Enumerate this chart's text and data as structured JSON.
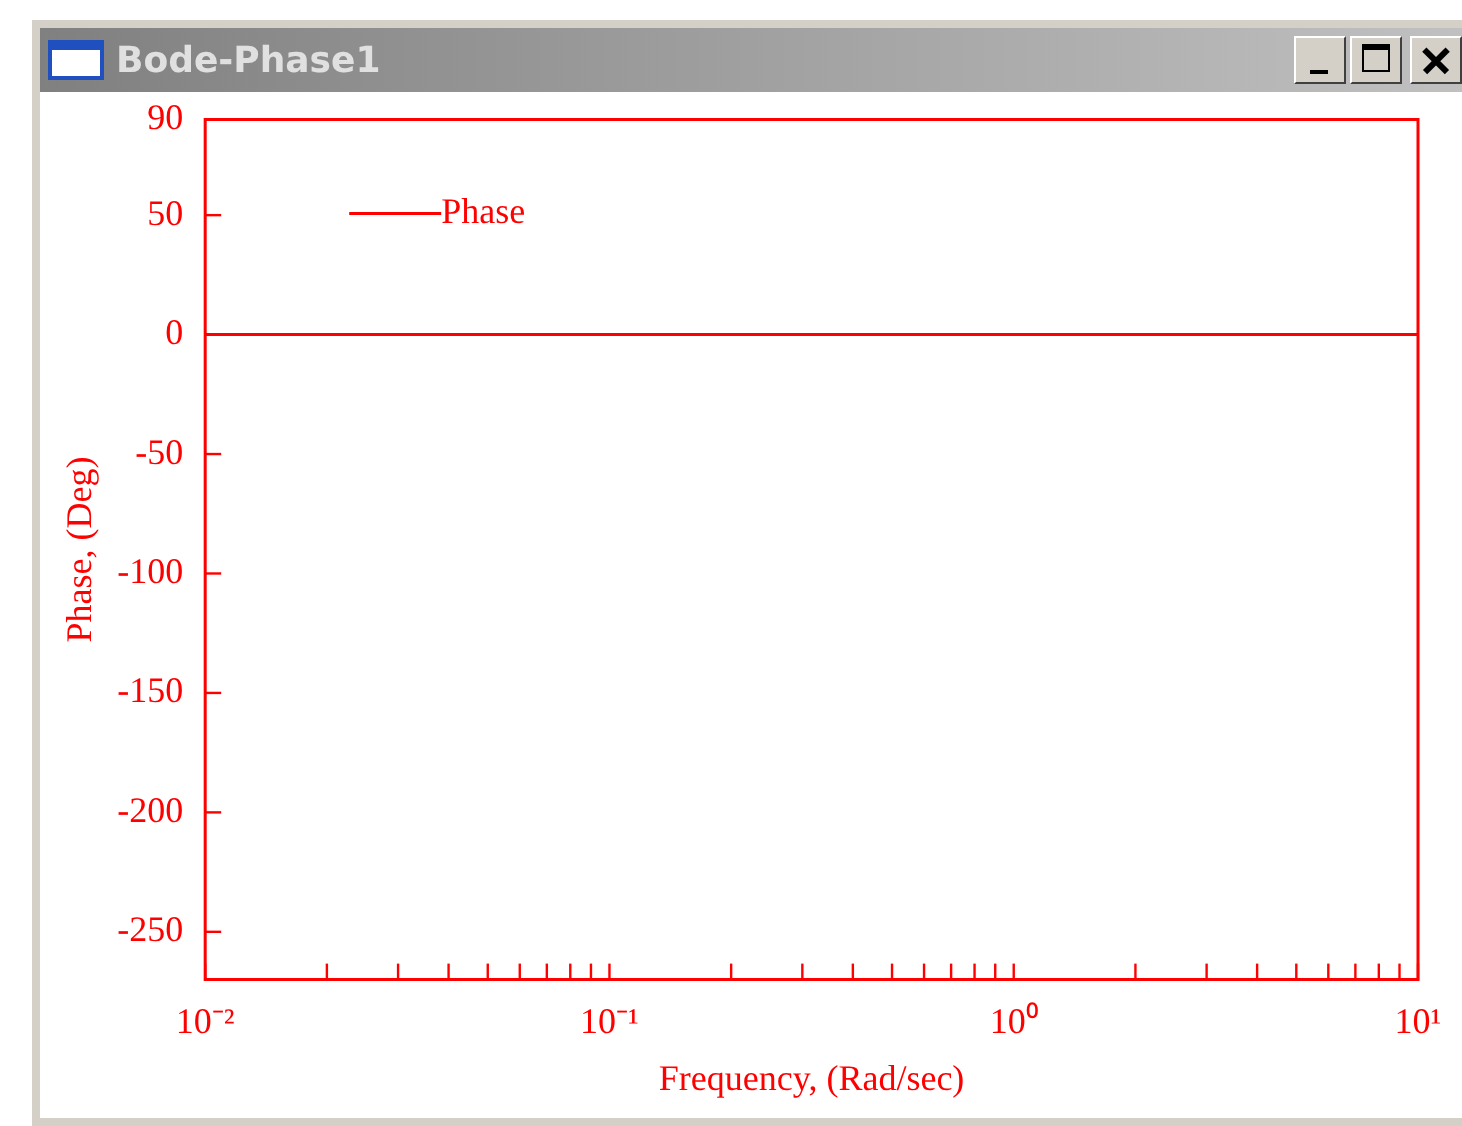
{
  "chart_data": {
    "type": "line",
    "title": "Bode-Phase1",
    "xlabel": "Frequency, (Rad/sec)",
    "ylabel": "Phase, (Deg)",
    "series": [
      {
        "name": "Phase",
        "color": "#ff0000",
        "x": [
          0.01,
          10
        ],
        "values": [
          0,
          0
        ]
      }
    ],
    "log": "x",
    "xlim": [
      0.01,
      10
    ],
    "xticks": [
      {
        "value": 0.01,
        "label": "10⁻²"
      },
      {
        "value": 0.02,
        "label": null
      },
      {
        "value": 0.03,
        "label": null
      },
      {
        "value": 0.04,
        "label": null
      },
      {
        "value": 0.05,
        "label": null
      },
      {
        "value": 0.06,
        "label": null
      },
      {
        "value": 0.07,
        "label": null
      },
      {
        "value": 0.08,
        "label": null
      },
      {
        "value": 0.09,
        "label": null
      },
      {
        "value": 0.1,
        "label": "10⁻¹"
      },
      {
        "value": 0.2,
        "label": null
      },
      {
        "value": 0.3,
        "label": null
      },
      {
        "value": 0.4,
        "label": null
      },
      {
        "value": 0.5,
        "label": null
      },
      {
        "value": 0.6,
        "label": null
      },
      {
        "value": 0.7,
        "label": null
      },
      {
        "value": 0.8,
        "label": null
      },
      {
        "value": 0.9,
        "label": null
      },
      {
        "value": 1,
        "label": "10⁰"
      },
      {
        "value": 2,
        "label": null
      },
      {
        "value": 3,
        "label": null
      },
      {
        "value": 4,
        "label": null
      },
      {
        "value": 5,
        "label": null
      },
      {
        "value": 6,
        "label": null
      },
      {
        "value": 7,
        "label": null
      },
      {
        "value": 8,
        "label": null
      },
      {
        "value": 9,
        "label": null
      },
      {
        "value": 10,
        "label": "10¹"
      }
    ],
    "ylim": [
      -270,
      90
    ],
    "yticks": [
      90,
      50,
      0,
      -50,
      -100,
      -150,
      -200,
      -250
    ],
    "grid": false,
    "legend": "top left",
    "marker": "none",
    "line_style": "solid"
  }
}
